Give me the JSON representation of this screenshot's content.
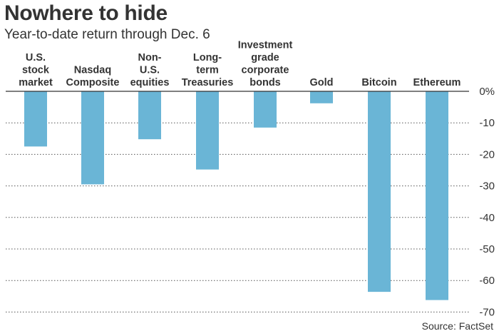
{
  "chart_data": {
    "type": "bar",
    "title": "Nowhere to hide",
    "subtitle": "Year-to-date return through Dec. 6",
    "source": "Source: FactSet",
    "categories": [
      [
        "U.S.",
        "stock",
        "market"
      ],
      [
        "Nasdaq",
        "Composite"
      ],
      [
        "Non-",
        "U.S.",
        "equities"
      ],
      [
        "Long-",
        "term",
        "Treasuries"
      ],
      [
        "Investment",
        "grade",
        "corporate",
        "bonds"
      ],
      [
        "Gold"
      ],
      [
        "Bitcoin"
      ],
      [
        "Ethereum"
      ]
    ],
    "values": [
      -17.5,
      -29.5,
      -15.2,
      -24.8,
      -11.5,
      -3.8,
      -63.6,
      -66.2
    ],
    "ylim": [
      -70,
      0
    ],
    "yticks": [
      0,
      -10,
      -20,
      -30,
      -40,
      -50,
      -60,
      -70
    ],
    "ytick_labels": [
      "0%",
      "-10",
      "-20",
      "-30",
      "-40",
      "-50",
      "-60",
      "-70"
    ],
    "grid": true,
    "bar_color": "#6ab5d6"
  }
}
